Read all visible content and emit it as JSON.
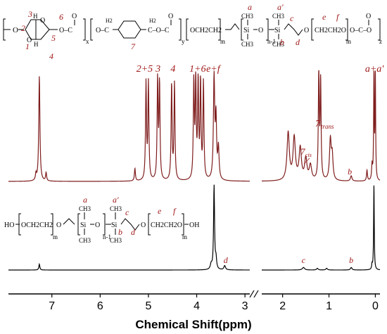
{
  "colors": {
    "upper_spectrum": "#7f1d1d",
    "lower_spectrum": "#000000",
    "label_red": "#a01818",
    "axis": "#000000"
  },
  "chart_data": {
    "type": "line",
    "title": "",
    "xlabel": "Chemical Shift(ppm)",
    "ylabel": "",
    "x_reversed": true,
    "axis_break": [
      2.9,
      2.45
    ],
    "xlim": [
      7.9,
      -0.1
    ],
    "ticks": [
      "7",
      "6",
      "5",
      "4",
      "3",
      "2",
      "1",
      "0"
    ],
    "series": [
      {
        "peaks": [
          {
            "x": 7.26,
            "h": 1.0,
            "w": 0.014
          },
          {
            "x": 7.33,
            "h": 0.06,
            "w": 0.012
          },
          {
            "x": 7.12,
            "h": 0.08,
            "w": 0.012
          },
          {
            "x": 5.28,
            "h": 0.12,
            "w": 0.012
          },
          {
            "x": 5.05,
            "h": 0.92,
            "w": 0.012
          },
          {
            "x": 5.0,
            "h": 0.92,
            "w": 0.012
          },
          {
            "x": 4.81,
            "h": 0.95,
            "w": 0.012
          },
          {
            "x": 4.77,
            "h": 0.92,
            "w": 0.012
          },
          {
            "x": 4.52,
            "h": 0.92,
            "w": 0.012
          },
          {
            "x": 4.46,
            "h": 0.92,
            "w": 0.012
          },
          {
            "x": 4.06,
            "h": 0.92,
            "w": 0.012
          },
          {
            "x": 4.02,
            "h": 0.92,
            "w": 0.012
          },
          {
            "x": 3.97,
            "h": 0.92,
            "w": 0.012
          },
          {
            "x": 3.92,
            "h": 0.92,
            "w": 0.012
          },
          {
            "x": 3.86,
            "h": 0.92,
            "w": 0.012
          },
          {
            "x": 3.64,
            "h": 0.97,
            "w": 0.016
          },
          {
            "x": 3.6,
            "h": 0.55,
            "w": 0.014
          },
          {
            "x": 3.55,
            "h": 0.3,
            "w": 0.016
          },
          {
            "x": 1.88,
            "h": 0.45,
            "w": 0.03
          },
          {
            "x": 1.75,
            "h": 0.4,
            "w": 0.03
          },
          {
            "x": 1.62,
            "h": 0.3,
            "w": 0.03
          },
          {
            "x": 1.5,
            "h": 0.2,
            "w": 0.03
          },
          {
            "x": 1.4,
            "h": 0.14,
            "w": 0.03
          },
          {
            "x": 1.22,
            "h": 1.0,
            "w": 0.012
          },
          {
            "x": 1.18,
            "h": 0.92,
            "w": 0.012
          },
          {
            "x": 0.97,
            "h": 0.38,
            "w": 0.022
          },
          {
            "x": 0.93,
            "h": 0.22,
            "w": 0.02
          },
          {
            "x": 0.52,
            "h": 0.05,
            "w": 0.02
          },
          {
            "x": 0.18,
            "h": 0.1,
            "w": 0.012
          },
          {
            "x": 0.07,
            "h": 0.14,
            "w": 0.012
          },
          {
            "x": 0.03,
            "h": 1.0,
            "w": 0.008
          },
          {
            "x": 0.0,
            "h": 1.0,
            "w": 0.008
          }
        ]
      },
      {
        "peaks": [
          {
            "x": 7.26,
            "h": 0.07,
            "w": 0.012
          },
          {
            "x": 3.7,
            "h": 0.06,
            "w": 0.02
          },
          {
            "x": 3.64,
            "h": 1.0,
            "w": 0.012
          },
          {
            "x": 3.6,
            "h": 0.12,
            "w": 0.014
          },
          {
            "x": 3.42,
            "h": 0.05,
            "w": 0.02
          },
          {
            "x": 1.55,
            "h": 0.03,
            "w": 0.03
          },
          {
            "x": 1.25,
            "h": 0.02,
            "w": 0.02
          },
          {
            "x": 1.05,
            "h": 0.02,
            "w": 0.02
          },
          {
            "x": 0.52,
            "h": 0.03,
            "w": 0.02
          },
          {
            "x": 0.07,
            "h": 0.06,
            "w": 0.01
          },
          {
            "x": 0.03,
            "h": 1.0,
            "w": 0.008
          }
        ]
      }
    ],
    "peak_labels": [
      {
        "text": "2+5",
        "x": 5.08,
        "series": 0
      },
      {
        "text": "3",
        "x": 4.8,
        "series": 0
      },
      {
        "text": "4",
        "x": 4.49,
        "series": 0
      },
      {
        "text": "1+6",
        "x": 3.98,
        "series": 0
      },
      {
        "text": "e+f",
        "x": 3.66,
        "series": 0
      },
      {
        "text": "a+a'",
        "x": 0.02,
        "series": 0
      },
      {
        "text": "b",
        "x": 0.55,
        "series": 0
      },
      {
        "text": "d",
        "x": 3.4,
        "series": 1
      },
      {
        "text": "c",
        "x": 1.55,
        "series": 1
      },
      {
        "text": "b",
        "x": 0.52,
        "series": 1
      }
    ],
    "annotation_7trans": {
      "base": "7",
      "sub": "trans"
    },
    "annotation_7cis": {
      "base": "7",
      "sub": "cis"
    }
  },
  "upper_structure": {
    "labels_red": [
      "3",
      "2",
      "1",
      "H",
      "H",
      "4",
      "5",
      "6",
      "7",
      "a",
      "a'",
      "b",
      "c",
      "d",
      "e",
      "f"
    ],
    "left_bracket_o": "O",
    "ring_o_top": "O",
    "ring_o_bottom": "O",
    "ester_1": "O–C",
    "ester_1_o": "O",
    "sub_x": "x",
    "linker_1": "O–C",
    "ch2_left": "H2",
    "ch2_right": "H2",
    "c_right": "C–O–C",
    "ester_2_o": "O",
    "sub_y": "y",
    "peo_1": "OCH2CH2",
    "sub_m1": "m",
    "si1": "Si",
    "si2": "Si",
    "ch3_1_top": "CH3",
    "ch3_1_bot": "CH3",
    "ch3_2_top": "CH3",
    "ch3_2_bot": "CH3",
    "o_between": "O",
    "sub_n1": "n-1",
    "o_after": "O",
    "peo_2": "CH2CH2O",
    "sub_m2": "m",
    "end_ester": "O–C–O",
    "end_ester_o": "O",
    "sub_z": "z"
  },
  "lower_structure": {
    "ho": "HO",
    "peo_1": "OCH2CH2",
    "sub_m1": "m",
    "o1": "O",
    "si1": "Si",
    "si2": "Si",
    "ch3_1_top": "CH3",
    "ch3_1_bot": "CH3",
    "ch3_2_top": "CH3",
    "ch3_2_bot": "CH3",
    "o_mid": "O",
    "sub_n1": "n-1",
    "o2": "O",
    "peo_2": "CH2CH2O",
    "sub_m2": "m",
    "oh": "OH",
    "labels": [
      "a",
      "a'",
      "b",
      "c",
      "d",
      "e",
      "f"
    ]
  }
}
